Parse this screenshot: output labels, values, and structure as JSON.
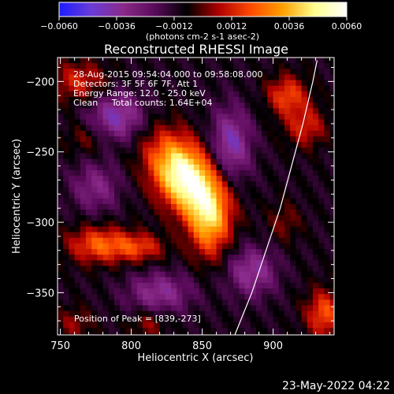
{
  "chart_data": {
    "type": "heatmap",
    "title": "Reconstructed RHESSI Image",
    "xlabel": "Heliocentric X (arcsec)",
    "ylabel": "Heliocentric Y (arcsec)",
    "xlim": [
      748,
      943
    ],
    "ylim": [
      -380,
      -183
    ],
    "xticks": [
      750,
      800,
      850,
      900
    ],
    "yticks": [
      -200,
      -250,
      -300,
      -350
    ],
    "annotation_lines": [
      "28-Aug-2015 09:54:04.000 to 09:58:08.000",
      "Detectors: 3F 5F 6F 7F, Att 1",
      "Energy Range: 12.0 - 25.0 keV",
      "Clean     Total counts: 1.64E+04"
    ],
    "peak_text": "Position of Peak = [839,-273]",
    "peak": {
      "x": 839,
      "y": -273
    },
    "colorbar": {
      "min": -0.006,
      "max": 0.006,
      "tick_labels": [
        "-0.0060",
        "-0.0036",
        "-0.0012",
        "0.0012",
        "0.0036",
        "0.0060"
      ],
      "unit_label": "(photons cm-2 s-1 asec-2)",
      "colormap": [
        "#1c1cff",
        "#6a3cd8",
        "#8a2a8a",
        "#5a0a5a",
        "#000000",
        "#b00000",
        "#ff4a00",
        "#ffa000",
        "#ffff90",
        "#ffffff"
      ]
    },
    "limb_curve": [
      {
        "x": 873,
        "y": -380
      },
      {
        "x": 885,
        "y": -350
      },
      {
        "x": 895,
        "y": -320
      },
      {
        "x": 905,
        "y": -290
      },
      {
        "x": 913,
        "y": -260
      },
      {
        "x": 921,
        "y": -230
      },
      {
        "x": 928,
        "y": -200
      },
      {
        "x": 931,
        "y": -185
      }
    ],
    "sources": [
      {
        "x": 838,
        "y": -268,
        "sx": 14,
        "sy": 22,
        "rot": -35,
        "amp": 0.007
      },
      {
        "x": 855,
        "y": -300,
        "sx": 10,
        "sy": 18,
        "rot": 0,
        "amp": 0.0038
      },
      {
        "x": 778,
        "y": -316,
        "sx": 16,
        "sy": 9,
        "rot": 0,
        "amp": 0.0032
      },
      {
        "x": 807,
        "y": -318,
        "sx": 12,
        "sy": 7,
        "rot": 0,
        "amp": 0.0022
      },
      {
        "x": 763,
        "y": -200,
        "sx": 14,
        "sy": 10,
        "rot": 0,
        "amp": 0.0022
      },
      {
        "x": 768,
        "y": -240,
        "sx": 10,
        "sy": 8,
        "rot": 0,
        "amp": 0.0012
      },
      {
        "x": 910,
        "y": -210,
        "sx": 10,
        "sy": 10,
        "rot": 0,
        "amp": 0.0028
      },
      {
        "x": 923,
        "y": -232,
        "sx": 10,
        "sy": 10,
        "rot": 0,
        "amp": 0.0022
      },
      {
        "x": 936,
        "y": -365,
        "sx": 9,
        "sy": 12,
        "rot": 0,
        "amp": 0.003
      },
      {
        "x": 760,
        "y": -372,
        "sx": 9,
        "sy": 8,
        "rot": 0,
        "amp": 0.0014
      },
      {
        "x": 812,
        "y": -372,
        "sx": 9,
        "sy": 7,
        "rot": 0,
        "amp": 0.0014
      },
      {
        "x": 908,
        "y": -300,
        "sx": 8,
        "sy": 10,
        "rot": 0,
        "amp": 0.0012
      },
      {
        "x": 790,
        "y": -225,
        "sx": 14,
        "sy": 12,
        "rot": 0,
        "amp": -0.003
      },
      {
        "x": 870,
        "y": -245,
        "sx": 10,
        "sy": 18,
        "rot": 0,
        "amp": -0.003
      },
      {
        "x": 885,
        "y": -335,
        "sx": 12,
        "sy": 12,
        "rot": 0,
        "amp": -0.0026
      },
      {
        "x": 820,
        "y": -350,
        "sx": 16,
        "sy": 10,
        "rot": 0,
        "amp": -0.0024
      },
      {
        "x": 775,
        "y": -275,
        "sx": 12,
        "sy": 12,
        "rot": 0,
        "amp": -0.002
      }
    ]
  },
  "footer": {
    "timestamp": "23-May-2022 04:22"
  }
}
